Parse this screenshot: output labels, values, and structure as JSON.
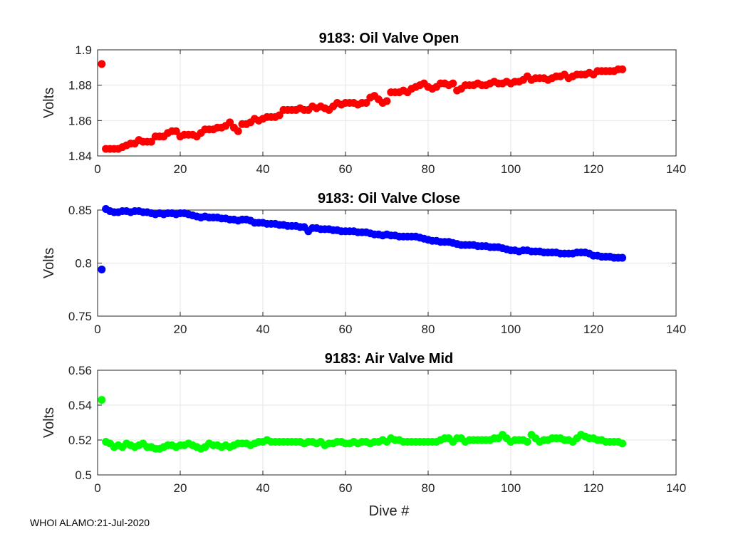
{
  "chart_data": [
    {
      "type": "scatter",
      "title": "9183: Oil Valve Open",
      "xlabel": "",
      "ylabel": "Volts",
      "xlim": [
        0,
        140
      ],
      "ylim": [
        1.84,
        1.9
      ],
      "xticks": [
        0,
        20,
        40,
        60,
        80,
        100,
        120,
        140
      ],
      "yticks": [
        1.84,
        1.86,
        1.88,
        1.9
      ],
      "ytick_labels": [
        "1.84",
        "1.86",
        "1.88",
        "1.9"
      ],
      "color": "#ff0000",
      "grid": true,
      "series": [
        {
          "name": "Oil Valve Open",
          "x": [
            1,
            2,
            3,
            4,
            5,
            6,
            7,
            8,
            9,
            10,
            11,
            12,
            13,
            14,
            15,
            16,
            17,
            18,
            19,
            20,
            21,
            22,
            23,
            24,
            25,
            26,
            27,
            28,
            29,
            30,
            31,
            32,
            33,
            34,
            35,
            36,
            37,
            38,
            39,
            40,
            41,
            42,
            43,
            44,
            45,
            46,
            47,
            48,
            49,
            50,
            51,
            52,
            53,
            54,
            55,
            56,
            57,
            58,
            59,
            60,
            61,
            62,
            63,
            64,
            65,
            66,
            67,
            68,
            69,
            70,
            71,
            72,
            73,
            74,
            75,
            76,
            77,
            78,
            79,
            80,
            81,
            82,
            83,
            84,
            85,
            86,
            87,
            88,
            89,
            90,
            91,
            92,
            93,
            94,
            95,
            96,
            97,
            98,
            99,
            100,
            101,
            102,
            103,
            104,
            105,
            106,
            107,
            108,
            109,
            110,
            111,
            112,
            113,
            114,
            115,
            116,
            117,
            118,
            119,
            120,
            121,
            122,
            123,
            124,
            125,
            126,
            127
          ],
          "y": [
            1.892,
            1.844,
            1.844,
            1.844,
            1.844,
            1.845,
            1.846,
            1.847,
            1.847,
            1.849,
            1.848,
            1.848,
            1.848,
            1.851,
            1.851,
            1.851,
            1.853,
            1.854,
            1.854,
            1.851,
            1.852,
            1.852,
            1.852,
            1.851,
            1.853,
            1.855,
            1.855,
            1.855,
            1.856,
            1.856,
            1.857,
            1.859,
            1.856,
            1.854,
            1.858,
            1.858,
            1.859,
            1.861,
            1.86,
            1.861,
            1.862,
            1.862,
            1.862,
            1.863,
            1.866,
            1.866,
            1.866,
            1.866,
            1.867,
            1.866,
            1.866,
            1.868,
            1.867,
            1.868,
            1.867,
            1.866,
            1.868,
            1.87,
            1.869,
            1.87,
            1.87,
            1.87,
            1.869,
            1.87,
            1.87,
            1.873,
            1.874,
            1.872,
            1.87,
            1.871,
            1.876,
            1.876,
            1.876,
            1.877,
            1.876,
            1.878,
            1.879,
            1.88,
            1.881,
            1.879,
            1.878,
            1.879,
            1.881,
            1.881,
            1.88,
            1.881,
            1.877,
            1.878,
            1.88,
            1.88,
            1.88,
            1.881,
            1.88,
            1.88,
            1.881,
            1.882,
            1.881,
            1.881,
            1.882,
            1.881,
            1.882,
            1.882,
            1.883,
            1.885,
            1.883,
            1.884,
            1.884,
            1.884,
            1.883,
            1.884,
            1.885,
            1.885,
            1.886,
            1.884,
            1.885,
            1.886,
            1.886,
            1.886,
            1.887,
            1.886,
            1.888,
            1.888,
            1.888,
            1.888,
            1.888,
            1.889,
            1.889
          ]
        }
      ]
    },
    {
      "type": "scatter",
      "title": "9183: Oil Valve Close",
      "xlabel": "",
      "ylabel": "Volts",
      "xlim": [
        0,
        140
      ],
      "ylim": [
        0.75,
        0.85
      ],
      "xticks": [
        0,
        20,
        40,
        60,
        80,
        100,
        120,
        140
      ],
      "yticks": [
        0.75,
        0.8,
        0.85
      ],
      "ytick_labels": [
        "0.75",
        "0.8",
        "0.85"
      ],
      "color": "#0000ff",
      "grid": true,
      "series": [
        {
          "name": "Oil Valve Close",
          "x": [
            1,
            2,
            3,
            4,
            5,
            6,
            7,
            8,
            9,
            10,
            11,
            12,
            13,
            14,
            15,
            16,
            17,
            18,
            19,
            20,
            21,
            22,
            23,
            24,
            25,
            26,
            27,
            28,
            29,
            30,
            31,
            32,
            33,
            34,
            35,
            36,
            37,
            38,
            39,
            40,
            41,
            42,
            43,
            44,
            45,
            46,
            47,
            48,
            49,
            50,
            51,
            52,
            53,
            54,
            55,
            56,
            57,
            58,
            59,
            60,
            61,
            62,
            63,
            64,
            65,
            66,
            67,
            68,
            69,
            70,
            71,
            72,
            73,
            74,
            75,
            76,
            77,
            78,
            79,
            80,
            81,
            82,
            83,
            84,
            85,
            86,
            87,
            88,
            89,
            90,
            91,
            92,
            93,
            94,
            95,
            96,
            97,
            98,
            99,
            100,
            101,
            102,
            103,
            104,
            105,
            106,
            107,
            108,
            109,
            110,
            111,
            112,
            113,
            114,
            115,
            116,
            117,
            118,
            119,
            120,
            121,
            122,
            123,
            124,
            125,
            126,
            127
          ],
          "y": [
            0.794,
            0.851,
            0.849,
            0.848,
            0.848,
            0.849,
            0.849,
            0.848,
            0.849,
            0.849,
            0.848,
            0.848,
            0.847,
            0.846,
            0.847,
            0.846,
            0.847,
            0.847,
            0.846,
            0.847,
            0.847,
            0.846,
            0.845,
            0.844,
            0.843,
            0.844,
            0.843,
            0.843,
            0.843,
            0.842,
            0.842,
            0.841,
            0.841,
            0.84,
            0.841,
            0.841,
            0.84,
            0.838,
            0.838,
            0.838,
            0.837,
            0.837,
            0.837,
            0.836,
            0.836,
            0.835,
            0.835,
            0.835,
            0.834,
            0.834,
            0.83,
            0.833,
            0.833,
            0.832,
            0.832,
            0.832,
            0.831,
            0.831,
            0.83,
            0.83,
            0.83,
            0.83,
            0.829,
            0.829,
            0.829,
            0.828,
            0.827,
            0.827,
            0.826,
            0.827,
            0.826,
            0.826,
            0.825,
            0.825,
            0.825,
            0.825,
            0.825,
            0.824,
            0.823,
            0.822,
            0.821,
            0.821,
            0.82,
            0.82,
            0.82,
            0.819,
            0.818,
            0.817,
            0.817,
            0.817,
            0.817,
            0.816,
            0.816,
            0.816,
            0.815,
            0.815,
            0.815,
            0.814,
            0.813,
            0.812,
            0.812,
            0.811,
            0.812,
            0.812,
            0.811,
            0.811,
            0.811,
            0.81,
            0.81,
            0.81,
            0.81,
            0.809,
            0.809,
            0.809,
            0.809,
            0.81,
            0.81,
            0.81,
            0.809,
            0.807,
            0.807,
            0.806,
            0.806,
            0.806,
            0.805,
            0.805,
            0.805
          ]
        }
      ]
    },
    {
      "type": "scatter",
      "title": "9183: Air Valve Mid",
      "xlabel": "Dive #",
      "ylabel": "Volts",
      "xlim": [
        0,
        140
      ],
      "ylim": [
        0.5,
        0.56
      ],
      "xticks": [
        0,
        20,
        40,
        60,
        80,
        100,
        120,
        140
      ],
      "yticks": [
        0.5,
        0.52,
        0.54,
        0.56
      ],
      "ytick_labels": [
        "0.5",
        "0.52",
        "0.54",
        "0.56"
      ],
      "color": "#00ff00",
      "grid": true,
      "series": [
        {
          "name": "Air Valve Mid",
          "x": [
            1,
            2,
            3,
            4,
            5,
            6,
            7,
            8,
            9,
            10,
            11,
            12,
            13,
            14,
            15,
            16,
            17,
            18,
            19,
            20,
            21,
            22,
            23,
            24,
            25,
            26,
            27,
            28,
            29,
            30,
            31,
            32,
            33,
            34,
            35,
            36,
            37,
            38,
            39,
            40,
            41,
            42,
            43,
            44,
            45,
            46,
            47,
            48,
            49,
            50,
            51,
            52,
            53,
            54,
            55,
            56,
            57,
            58,
            59,
            60,
            61,
            62,
            63,
            64,
            65,
            66,
            67,
            68,
            69,
            70,
            71,
            72,
            73,
            74,
            75,
            76,
            77,
            78,
            79,
            80,
            81,
            82,
            83,
            84,
            85,
            86,
            87,
            88,
            89,
            90,
            91,
            92,
            93,
            94,
            95,
            96,
            97,
            98,
            99,
            100,
            101,
            102,
            103,
            104,
            105,
            106,
            107,
            108,
            109,
            110,
            111,
            112,
            113,
            114,
            115,
            116,
            117,
            118,
            119,
            120,
            121,
            122,
            123,
            124,
            125,
            126,
            127
          ],
          "y": [
            0.543,
            0.519,
            0.518,
            0.516,
            0.517,
            0.516,
            0.518,
            0.517,
            0.516,
            0.517,
            0.518,
            0.516,
            0.516,
            0.515,
            0.515,
            0.516,
            0.517,
            0.517,
            0.516,
            0.517,
            0.517,
            0.518,
            0.517,
            0.516,
            0.515,
            0.516,
            0.518,
            0.517,
            0.517,
            0.516,
            0.517,
            0.516,
            0.517,
            0.518,
            0.518,
            0.518,
            0.517,
            0.518,
            0.519,
            0.519,
            0.52,
            0.519,
            0.519,
            0.519,
            0.519,
            0.519,
            0.519,
            0.519,
            0.519,
            0.518,
            0.519,
            0.519,
            0.518,
            0.519,
            0.517,
            0.518,
            0.518,
            0.519,
            0.519,
            0.518,
            0.518,
            0.519,
            0.518,
            0.519,
            0.519,
            0.518,
            0.519,
            0.519,
            0.52,
            0.519,
            0.521,
            0.52,
            0.52,
            0.519,
            0.519,
            0.519,
            0.519,
            0.519,
            0.519,
            0.519,
            0.519,
            0.519,
            0.52,
            0.521,
            0.521,
            0.519,
            0.521,
            0.521,
            0.519,
            0.52,
            0.52,
            0.52,
            0.52,
            0.52,
            0.52,
            0.521,
            0.521,
            0.523,
            0.521,
            0.519,
            0.52,
            0.52,
            0.52,
            0.519,
            0.523,
            0.521,
            0.519,
            0.52,
            0.52,
            0.521,
            0.521,
            0.521,
            0.52,
            0.52,
            0.519,
            0.521,
            0.523,
            0.522,
            0.521,
            0.521,
            0.52,
            0.52,
            0.519,
            0.519,
            0.519,
            0.519,
            0.518
          ]
        }
      ]
    }
  ],
  "footer": "WHOI ALAMO:21-Jul-2020"
}
